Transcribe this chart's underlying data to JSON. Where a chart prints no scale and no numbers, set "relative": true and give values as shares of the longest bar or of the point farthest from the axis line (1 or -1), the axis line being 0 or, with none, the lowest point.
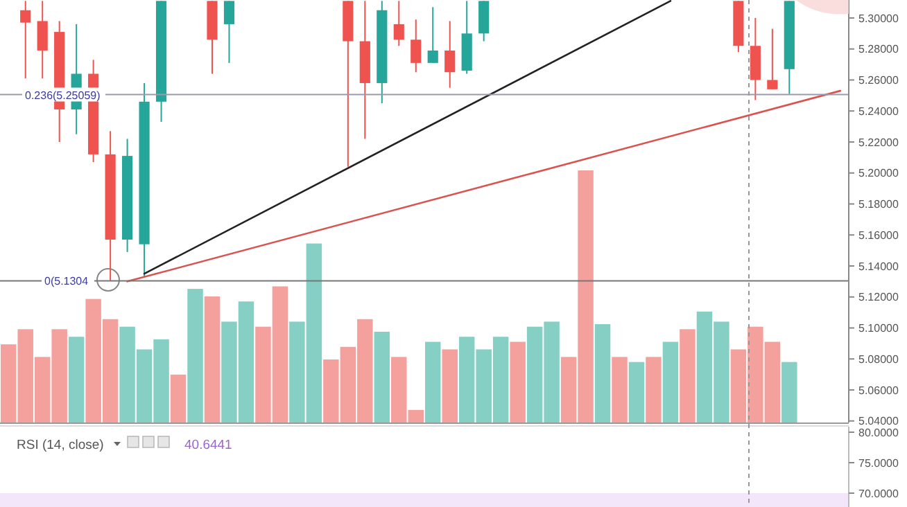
{
  "chart_data": [
    {
      "type": "candlestick",
      "tick_labels": "y",
      "categories": [
        null,
        null,
        null,
        null,
        null,
        null,
        null,
        null,
        null,
        null,
        null,
        null,
        null,
        null,
        null,
        null,
        null,
        null,
        null,
        null,
        null,
        null,
        null,
        null,
        null,
        null,
        null,
        null,
        null,
        null,
        null,
        null,
        null,
        null,
        null,
        null,
        null,
        null,
        null,
        null,
        null,
        null,
        null,
        null,
        null,
        null,
        null,
        null,
        null,
        null
      ],
      "ohlc": [
        null,
        [
          5.305,
          5.311,
          5.261,
          5.297
        ],
        [
          5.298,
          5.311,
          5.261,
          5.279
        ],
        [
          5.291,
          5.298,
          5.22,
          5.241
        ],
        [
          5.241,
          5.296,
          5.225,
          5.264
        ],
        [
          5.264,
          5.273,
          5.207,
          5.212
        ],
        [
          5.212,
          5.227,
          5.1304,
          5.157
        ],
        [
          5.157,
          5.222,
          5.149,
          5.211
        ],
        [
          5.154,
          5.258,
          5.133,
          5.246
        ],
        [
          5.246,
          5.311,
          5.233,
          5.311
        ],
        null,
        null,
        [
          5.311,
          5.311,
          5.264,
          5.286
        ],
        [
          5.296,
          5.311,
          5.271,
          5.311
        ],
        null,
        null,
        null,
        null,
        null,
        null,
        [
          5.311,
          5.311,
          5.204,
          5.285
        ],
        [
          5.285,
          5.311,
          5.222,
          5.258
        ],
        [
          5.258,
          5.311,
          5.245,
          5.305
        ],
        [
          5.296,
          5.311,
          5.282,
          5.286
        ],
        [
          5.286,
          5.299,
          5.265,
          5.271
        ],
        [
          5.271,
          5.307,
          5.271,
          5.279
        ],
        [
          5.279,
          5.298,
          5.255,
          5.265
        ],
        [
          5.266,
          5.311,
          5.264,
          5.29
        ],
        [
          5.29,
          5.311,
          5.285,
          5.311
        ],
        null,
        null,
        null,
        null,
        null,
        null,
        null,
        null,
        null,
        null,
        null,
        null,
        null,
        null,
        [
          5.311,
          5.311,
          5.278,
          5.282
        ],
        [
          5.282,
          5.3,
          5.247,
          5.26
        ],
        [
          5.26,
          5.293,
          5.254,
          5.254
        ],
        [
          5.267,
          5.311,
          5.251,
          5.311
        ],
        null,
        null,
        null
      ],
      "series": [
        {
          "type": "line",
          "color": "#222222",
          "values": [
            null,
            null,
            null,
            null,
            null,
            null,
            null,
            null,
            5.135,
            null,
            null,
            null,
            null,
            null,
            null,
            null,
            null,
            null,
            null,
            null,
            null,
            null,
            null,
            null,
            null,
            null,
            null,
            null,
            null,
            null,
            null,
            null,
            null,
            null,
            null,
            null,
            null,
            null,
            null,
            5.311,
            null,
            null,
            null,
            null,
            null,
            null,
            null,
            null,
            null,
            null
          ]
        },
        {
          "type": "line",
          "color": "#d9534f",
          "values": [
            null,
            null,
            null,
            null,
            null,
            null,
            null,
            5.13,
            null,
            null,
            null,
            null,
            null,
            null,
            null,
            null,
            null,
            null,
            null,
            null,
            null,
            null,
            null,
            null,
            null,
            null,
            null,
            null,
            null,
            null,
            null,
            null,
            null,
            null,
            null,
            null,
            null,
            null,
            null,
            null,
            null,
            null,
            null,
            null,
            null,
            null,
            null,
            null,
            null,
            5.253
          ]
        }
      ],
      "ylim": [
        5.039,
        5.3116
      ],
      "yticks": [
        {
          "value": 5.3,
          "label": "5.30000"
        },
        {
          "value": 5.28,
          "label": "5.28000"
        },
        {
          "value": 5.26,
          "label": "5.26000"
        },
        {
          "value": 5.24,
          "label": "5.24000"
        },
        {
          "value": 5.22,
          "label": "5.22000"
        },
        {
          "value": 5.2,
          "label": "5.20000"
        },
        {
          "value": 5.18,
          "label": "5.18000"
        },
        {
          "value": 5.16,
          "label": "5.16000"
        },
        {
          "value": 5.14,
          "label": "5.14000"
        },
        {
          "value": 5.12,
          "label": "5.12000"
        },
        {
          "value": 5.1,
          "label": "5.10000"
        },
        {
          "value": 5.08,
          "label": "5.08000"
        },
        {
          "value": 5.06,
          "label": "5.06000"
        },
        {
          "value": 5.04,
          "label": "5.04000"
        }
      ],
      "ref_lines": [
        {
          "axis": "y",
          "value": 5.25059,
          "label": "0.236(5.25059)",
          "color": "#9a9aae"
        },
        {
          "axis": "y",
          "value": 5.1304,
          "label": "0(5.1304",
          "color": "#777777"
        }
      ]
    },
    {
      "type": "bar",
      "relative": true,
      "tick_labels": false,
      "categories": [
        null,
        null,
        null,
        null,
        null,
        null,
        null,
        null,
        null,
        null,
        null,
        null,
        null,
        null,
        null,
        null,
        null,
        null,
        null,
        null,
        null,
        null,
        null,
        null,
        null,
        null,
        null,
        null,
        null,
        null,
        null,
        null,
        null,
        null,
        null,
        null,
        null,
        null,
        null,
        null,
        null,
        null,
        null,
        null,
        null,
        null,
        null,
        null,
        null,
        null
      ],
      "values": [
        0.31,
        0.37,
        0.26,
        0.37,
        0.34,
        0.49,
        0.41,
        0.38,
        0.29,
        0.33,
        0.19,
        0.53,
        0.5,
        0.4,
        0.48,
        0.38,
        0.54,
        0.4,
        0.71,
        0.25,
        0.3,
        0.41,
        0.36,
        0.26,
        0.05,
        0.32,
        0.29,
        0.34,
        0.29,
        0.34,
        0.32,
        0.38,
        0.4,
        0.26,
        1,
        0.39,
        0.26,
        0.24,
        0.26,
        0.32,
        0.37,
        0.44,
        0.4,
        0.29,
        0.38,
        0.32,
        0.24,
        null,
        null,
        null
      ],
      "colors": [
        "#f4a09c",
        "#f4a09c",
        "#f4a09c",
        "#f4a09c",
        "#86cfc4",
        "#f4a09c",
        "#f4a09c",
        "#86cfc4",
        "#86cfc4",
        "#86cfc4",
        "#f4a09c",
        "#86cfc4",
        "#f4a09c",
        "#86cfc4",
        "#86cfc4",
        "#f4a09c",
        "#f4a09c",
        "#86cfc4",
        "#86cfc4",
        "#f4a09c",
        "#f4a09c",
        "#f4a09c",
        "#86cfc4",
        "#f4a09c",
        "#f4a09c",
        "#86cfc4",
        "#f4a09c",
        "#86cfc4",
        "#86cfc4",
        "#86cfc4",
        "#f4a09c",
        "#86cfc4",
        "#86cfc4",
        "#f4a09c",
        "#f4a09c",
        "#86cfc4",
        "#f4a09c",
        "#86cfc4",
        "#f4a09c",
        "#86cfc4",
        "#f4a09c",
        "#86cfc4",
        "#86cfc4",
        "#f4a09c",
        "#f4a09c",
        "#f4a09c",
        "#86cfc4",
        null,
        null,
        null
      ]
    },
    {
      "type": "other",
      "title": "RSI (14, close)",
      "annotations": [
        "40.6441",
        "80.0000",
        "75.0000",
        "70.0000"
      ]
    }
  ]
}
